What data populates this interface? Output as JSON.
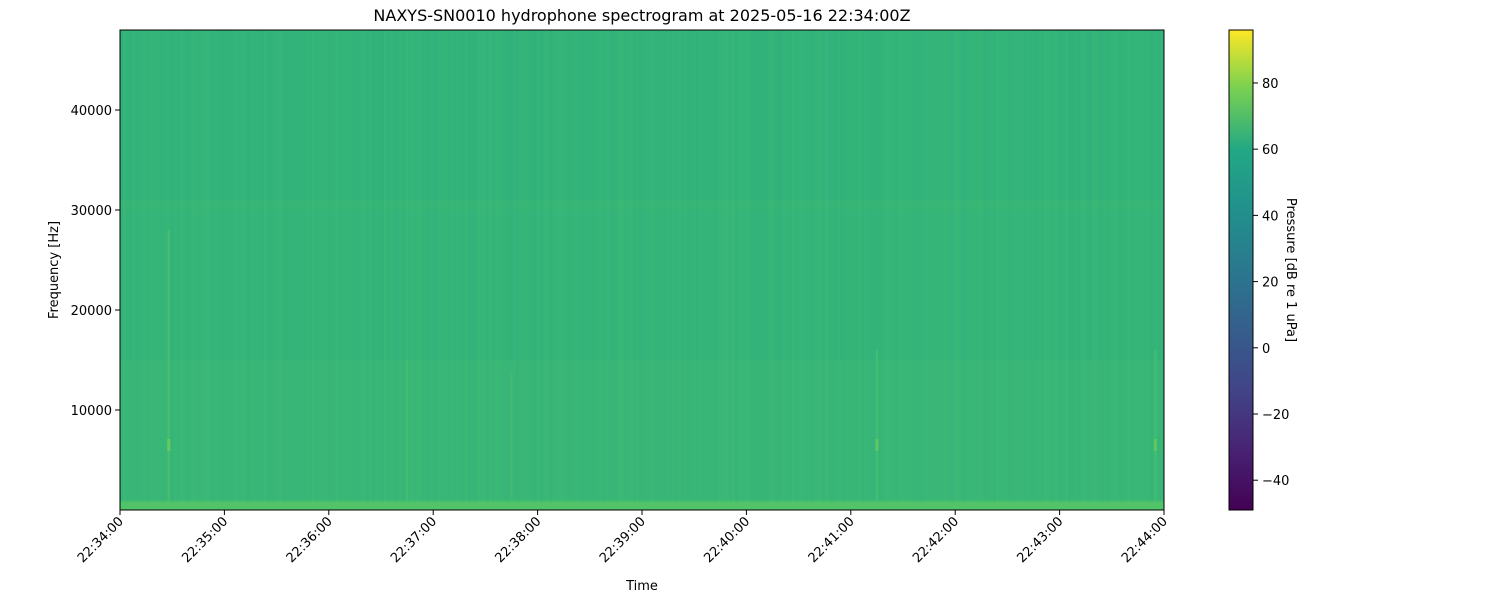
{
  "chart_data": {
    "type": "heatmap",
    "title": "NAXYS-SN0010 hydrophone spectrogram at 2025-05-16 22:34:00Z",
    "xlabel": "Time",
    "ylabel": "Frequency [Hz]",
    "colorbar_label": "Pressure [dB re 1 uPa]",
    "colormap": "viridis",
    "xlim": [
      "22:34:00",
      "22:44:00"
    ],
    "ylim": [
      0,
      48000
    ],
    "clim": [
      -49,
      96
    ],
    "x_ticks": [
      "22:34:00",
      "22:35:00",
      "22:36:00",
      "22:37:00",
      "22:38:00",
      "22:39:00",
      "22:40:00",
      "22:41:00",
      "22:42:00",
      "22:43:00",
      "22:44:00"
    ],
    "y_ticks": [
      10000,
      20000,
      30000,
      40000
    ],
    "colorbar_ticks": [
      -40,
      -20,
      0,
      20,
      40,
      60,
      80
    ],
    "frequency_profile_db": [
      {
        "f_min": 0,
        "f_max": 1000,
        "db": 56
      },
      {
        "f_min": 1000,
        "f_max": 15000,
        "db": 49
      },
      {
        "f_min": 15000,
        "f_max": 30000,
        "db": 46
      },
      {
        "f_min": 30000,
        "f_max": 31000,
        "db": 48
      },
      {
        "f_min": 31000,
        "f_max": 48000,
        "db": 45
      }
    ],
    "transients": [
      {
        "time": "22:34:28",
        "f_min": 800,
        "f_max": 28000,
        "db": 55,
        "peak_f": 6500,
        "peak_db": 62
      },
      {
        "time": "22:36:45",
        "f_min": 800,
        "f_max": 15000,
        "db": 52
      },
      {
        "time": "22:37:45",
        "f_min": 800,
        "f_max": 14000,
        "db": 52
      },
      {
        "time": "22:41:15",
        "f_min": 800,
        "f_max": 16000,
        "db": 53,
        "peak_f": 6500,
        "peak_db": 60
      },
      {
        "time": "22:43:55",
        "f_min": 800,
        "f_max": 16000,
        "db": 53,
        "peak_f": 6500,
        "peak_db": 60
      }
    ]
  }
}
